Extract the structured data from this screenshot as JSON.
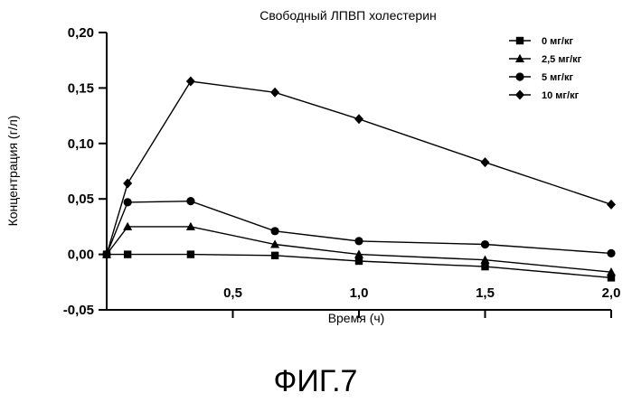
{
  "figure_label": "ФИГ.7",
  "chart_data": {
    "type": "line",
    "title": "Свободный ЛПВП холестерин",
    "xlabel": "Время (ч)",
    "ylabel": "Концентрация (г/л)",
    "xlim": [
      0,
      2.0
    ],
    "ylim": [
      -0.05,
      0.2
    ],
    "x_ticks": [
      "0,5",
      "1,0",
      "1,5",
      "2,0"
    ],
    "y_ticks": [
      "0,20",
      "0,15",
      "0,10",
      "0,05",
      "0,00",
      "-0,05"
    ],
    "x_tick_values": [
      0.5,
      1.0,
      1.5,
      2.0
    ],
    "y_tick_values": [
      0.2,
      0.15,
      0.1,
      0.05,
      0.0,
      -0.05
    ],
    "legend_position": "top-right",
    "series": [
      {
        "name": "0 мг/кг",
        "marker": "square",
        "x": [
          0,
          0.083,
          0.333,
          0.667,
          1.0,
          1.5,
          2.0
        ],
        "y": [
          0,
          0,
          0,
          -0.001,
          -0.006,
          -0.011,
          -0.021
        ]
      },
      {
        "name": "2,5 мг/кг",
        "marker": "triangle",
        "x": [
          0,
          0.083,
          0.333,
          0.667,
          1.0,
          1.5,
          2.0
        ],
        "y": [
          0,
          0.025,
          0.025,
          0.009,
          0.0,
          -0.005,
          -0.016
        ]
      },
      {
        "name": "5 мг/кг",
        "marker": "circle",
        "x": [
          0,
          0.083,
          0.333,
          0.667,
          1.0,
          1.5,
          2.0
        ],
        "y": [
          0,
          0.047,
          0.048,
          0.021,
          0.012,
          0.009,
          0.001
        ]
      },
      {
        "name": "10 мг/кг",
        "marker": "diamond",
        "x": [
          0,
          0.083,
          0.333,
          0.667,
          1.0,
          1.5,
          2.0
        ],
        "y": [
          0,
          0.064,
          0.156,
          0.146,
          0.122,
          0.083,
          0.045
        ]
      }
    ]
  }
}
